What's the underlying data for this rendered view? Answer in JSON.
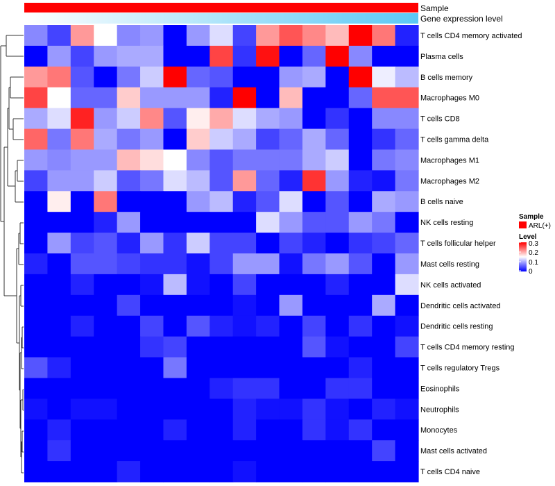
{
  "chart_data": {
    "type": "heatmap",
    "annotations": [
      {
        "name": "Sample",
        "kind": "categorical",
        "value": "ARL(+)",
        "color": "#FF0000"
      },
      {
        "name": "Gene expression level",
        "kind": "gradient",
        "from_color": "#FFFFFF",
        "to_color": "#5BC8F5"
      }
    ],
    "rows": [
      "T cells CD4 memory activated",
      "Plasma cells",
      "B cells memory",
      "Macrophages M0",
      "T cells CD8",
      "T cells gamma delta",
      "Macrophages M1",
      "Macrophages M2",
      "B cells naive",
      "NK cells resting",
      "T cells follicular helper",
      "Mast cells resting",
      "NK cells activated",
      "Dendritic cells activated",
      "Dendritic cells resting",
      "T cells CD4 memory resting",
      "T cells regulatory  Tregs",
      "Eosinophils",
      "Neutrophils",
      "Monocytes",
      "Mast cells activated",
      "T cells CD4 naive"
    ],
    "values": [
      [
        0.08,
        0.04,
        0.21,
        0.15,
        0.08,
        0.09,
        0.0,
        0.09,
        0.13,
        0.04,
        0.21,
        0.25,
        0.22,
        0.19,
        0.3,
        0.23,
        0.02
      ],
      [
        0.0,
        0.09,
        0.04,
        0.09,
        0.1,
        0.1,
        0.0,
        0.0,
        0.26,
        0.03,
        0.29,
        0.0,
        0.06,
        0.3,
        0.08,
        0.0,
        0.0
      ],
      [
        0.21,
        0.23,
        0.05,
        0.0,
        0.07,
        0.12,
        0.3,
        0.06,
        0.05,
        0.0,
        0.0,
        0.09,
        0.1,
        0.0,
        0.3,
        0.14,
        0.11
      ],
      [
        0.26,
        0.15,
        0.06,
        0.06,
        0.18,
        0.09,
        0.09,
        0.09,
        0.02,
        0.3,
        0.0,
        0.19,
        0.0,
        0.0,
        0.06,
        0.25,
        0.25
      ],
      [
        0.1,
        0.13,
        0.28,
        0.09,
        0.12,
        0.22,
        0.05,
        0.16,
        0.2,
        0.13,
        0.1,
        0.09,
        0.0,
        0.03,
        0.0,
        0.08,
        0.08
      ],
      [
        0.24,
        0.07,
        0.23,
        0.1,
        0.07,
        0.09,
        0.0,
        0.18,
        0.12,
        0.1,
        0.04,
        0.06,
        0.1,
        0.06,
        0.0,
        0.03,
        0.06
      ],
      [
        0.09,
        0.08,
        0.09,
        0.09,
        0.19,
        0.17,
        0.15,
        0.08,
        0.05,
        0.07,
        0.07,
        0.07,
        0.1,
        0.12,
        0.0,
        0.07,
        0.08
      ],
      [
        0.04,
        0.09,
        0.09,
        0.12,
        0.05,
        0.07,
        0.13,
        0.11,
        0.05,
        0.21,
        0.06,
        0.02,
        0.27,
        0.09,
        0.02,
        0.01,
        0.07
      ],
      [
        0.0,
        0.16,
        0.0,
        0.23,
        0.0,
        0.0,
        0.0,
        0.09,
        0.11,
        0.02,
        0.05,
        0.13,
        0.0,
        0.05,
        0.0,
        0.1,
        0.09
      ],
      [
        0.0,
        0.0,
        0.0,
        0.02,
        0.09,
        0.0,
        0.0,
        0.0,
        0.0,
        0.0,
        0.13,
        0.09,
        0.05,
        0.05,
        0.09,
        0.07,
        0.0
      ],
      [
        0.0,
        0.09,
        0.04,
        0.05,
        0.02,
        0.09,
        0.03,
        0.12,
        0.04,
        0.04,
        0.0,
        0.04,
        0.02,
        0.0,
        0.03,
        0.04,
        0.06
      ],
      [
        0.02,
        0.0,
        0.05,
        0.05,
        0.04,
        0.03,
        0.03,
        0.01,
        0.04,
        0.09,
        0.09,
        0.01,
        0.07,
        0.09,
        0.05,
        0.0,
        0.09
      ],
      [
        0.0,
        0.0,
        0.02,
        0.0,
        0.0,
        0.01,
        0.11,
        0.01,
        0.0,
        0.04,
        0.0,
        0.0,
        0.0,
        0.02,
        0.0,
        0.0,
        0.13
      ],
      [
        0.0,
        0.0,
        0.0,
        0.0,
        0.04,
        0.0,
        0.0,
        0.0,
        0.0,
        0.01,
        0.0,
        0.09,
        0.0,
        0.0,
        0.0,
        0.1,
        0.0
      ],
      [
        0.0,
        0.0,
        0.02,
        0.0,
        0.0,
        0.04,
        0.0,
        0.05,
        0.02,
        0.01,
        0.02,
        0.0,
        0.04,
        0.0,
        0.03,
        0.0,
        0.01
      ],
      [
        0.0,
        0.0,
        0.0,
        0.0,
        0.0,
        0.03,
        0.04,
        0.0,
        0.0,
        0.0,
        0.0,
        0.0,
        0.05,
        0.01,
        0.0,
        0.0,
        0.04
      ],
      [
        0.05,
        0.02,
        0.0,
        0.0,
        0.0,
        0.0,
        0.07,
        0.0,
        0.0,
        0.0,
        0.0,
        0.0,
        0.0,
        0.0,
        0.02,
        0.0,
        0.0
      ],
      [
        0.0,
        0.0,
        0.0,
        0.0,
        0.0,
        0.0,
        0.0,
        0.0,
        0.02,
        0.03,
        0.03,
        0.0,
        0.0,
        0.03,
        0.03,
        0.0,
        0.0
      ],
      [
        0.01,
        0.0,
        0.01,
        0.01,
        0.0,
        0.0,
        0.0,
        0.0,
        0.0,
        0.02,
        0.01,
        0.01,
        0.03,
        0.01,
        0.0,
        0.02,
        0.01
      ],
      [
        0.0,
        0.02,
        0.0,
        0.0,
        0.0,
        0.0,
        0.02,
        0.0,
        0.0,
        0.02,
        0.0,
        0.0,
        0.03,
        0.01,
        0.03,
        0.0,
        0.0
      ],
      [
        0.0,
        0.03,
        0.0,
        0.0,
        0.0,
        0.0,
        0.0,
        0.0,
        0.0,
        0.0,
        0.0,
        0.0,
        0.0,
        0.0,
        0.0,
        0.04,
        0.0
      ],
      [
        0.0,
        0.0,
        0.0,
        0.0,
        0.02,
        0.0,
        0.0,
        0.0,
        0.0,
        0.01,
        0.0,
        0.0,
        0.0,
        0.0,
        0.0,
        0.0,
        0.0
      ]
    ],
    "scale": {
      "min": 0,
      "max": 0.3,
      "low_color": "#0000FF",
      "mid_color": "#FFFFFF",
      "high_color": "#FF0000"
    },
    "dendrogram": "rows",
    "legend": {
      "placement": "right",
      "sample_title": "Sample",
      "sample_entry": "ARL(+)",
      "level_title": "Level",
      "ticks": [
        "0.3",
        "0.2",
        "0.1",
        "0"
      ]
    }
  }
}
